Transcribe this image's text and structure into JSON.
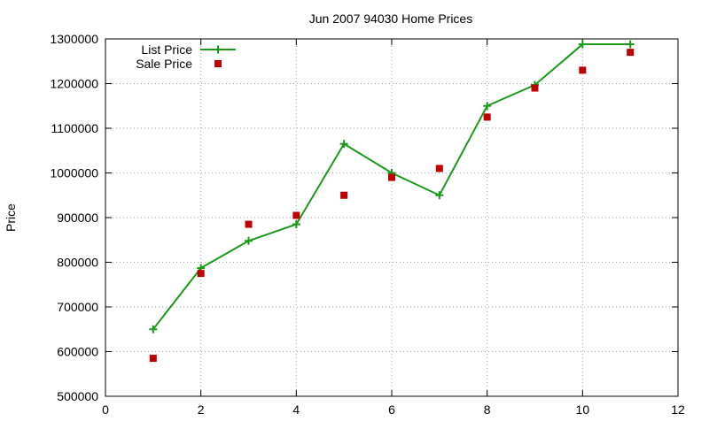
{
  "chart_data": {
    "type": "line",
    "title": "Jun 2007 94030 Home Prices",
    "xlabel": "",
    "ylabel": "Price",
    "xlim": [
      0,
      12
    ],
    "ylim": [
      500000,
      1300000
    ],
    "xticks": [
      0,
      2,
      4,
      6,
      8,
      10,
      12
    ],
    "yticks": [
      500000,
      600000,
      700000,
      800000,
      900000,
      1000000,
      1100000,
      1200000,
      1300000
    ],
    "xtick_labels": [
      "0",
      "2",
      "4",
      "6",
      "8",
      "10",
      "12"
    ],
    "ytick_labels": [
      "500000",
      "600000",
      "700000",
      "800000",
      "900000",
      "1000000",
      "1100000",
      "1200000",
      "1300000"
    ],
    "grid": true,
    "legend_position": "top-left",
    "series": [
      {
        "name": "List Price",
        "style": "lines+points",
        "marker": "plus",
        "color": "#1a9a1a",
        "x": [
          1,
          2,
          3,
          4,
          5,
          6,
          7,
          8,
          9,
          10,
          11
        ],
        "y": [
          650000,
          787000,
          848000,
          885000,
          1065000,
          1000000,
          950000,
          1150000,
          1197000,
          1288000,
          1288000
        ]
      },
      {
        "name": "Sale Price",
        "style": "points",
        "marker": "square",
        "color": "#c00000",
        "x": [
          1,
          2,
          3,
          4,
          5,
          6,
          7,
          8,
          9,
          10,
          11
        ],
        "y": [
          585000,
          775000,
          885000,
          905000,
          950000,
          990000,
          1010000,
          1125000,
          1190000,
          1230000,
          1270000
        ]
      }
    ]
  }
}
